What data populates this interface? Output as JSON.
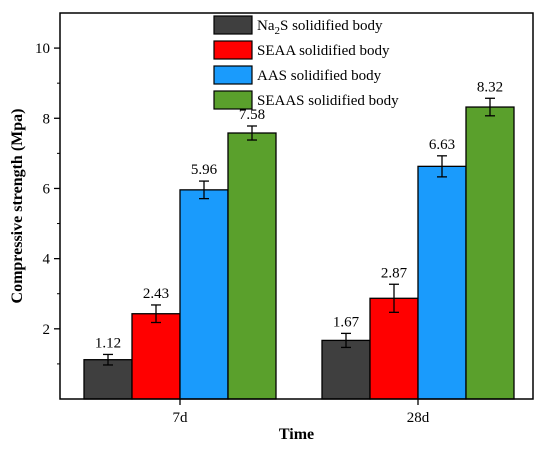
{
  "chart_data": {
    "type": "bar",
    "xlabel": "Time",
    "ylabel": "Compressive strength (Mpa)",
    "ylim": [
      0,
      11
    ],
    "y_ticks": [
      2,
      4,
      6,
      8,
      10
    ],
    "categories": [
      "7d",
      "28d"
    ],
    "legend_position": "top-right",
    "series": [
      {
        "name_prefix": "Na",
        "name_sub": "2",
        "name_suffix": "S solidified body",
        "color": "#3f3f3f",
        "values": [
          1.12,
          1.67
        ],
        "errors": [
          0.15,
          0.2
        ]
      },
      {
        "name": "SEAA solidified body",
        "color": "#ff0000",
        "values": [
          2.43,
          2.87
        ],
        "errors": [
          0.25,
          0.4
        ]
      },
      {
        "name": "AAS solidified body",
        "color": "#1a9bfc",
        "values": [
          5.96,
          6.63
        ],
        "errors": [
          0.25,
          0.3
        ]
      },
      {
        "name": "SEAAS solidified body",
        "color": "#5aa02c",
        "values": [
          7.58,
          8.32
        ],
        "errors": [
          0.2,
          0.25
        ]
      }
    ]
  }
}
